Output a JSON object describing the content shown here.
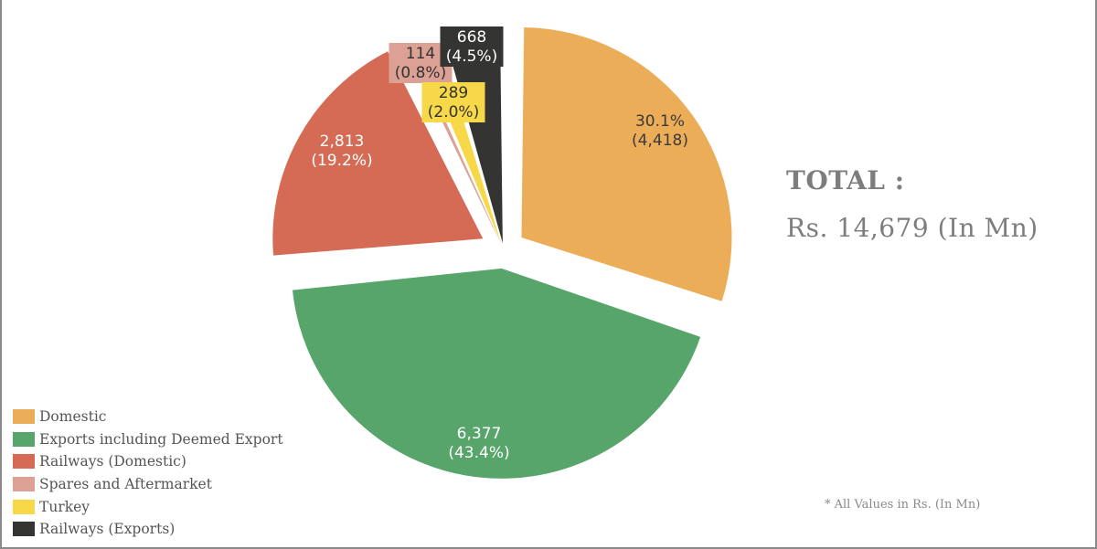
{
  "chart_data": {
    "type": "pie",
    "total_text": "TOTAL :",
    "total_amount": "Rs. 14,679 (In Mn)",
    "note": "* All Values in Rs. (In Mn)",
    "slices": [
      {
        "name": "Domestic",
        "value": 4418,
        "percent": 30.1,
        "color": "#EBAD58",
        "value_label": "(4,418)",
        "percent_label": "30.1%",
        "label_order": "percent_first",
        "label_color": "#3a3a3a",
        "label_bg": "",
        "exploded": true
      },
      {
        "name": "Exports including Deemed Export",
        "value": 6377,
        "percent": 43.4,
        "color": "#57A56A",
        "value_label": "6,377",
        "percent_label": "(43.4%)",
        "label_order": "value_first",
        "label_color": "#ffffff",
        "label_bg": "",
        "exploded": true
      },
      {
        "name": "Railways (Domestic)",
        "value": 2813,
        "percent": 19.2,
        "color": "#D56B55",
        "value_label": "2,813",
        "percent_label": "(19.2%)",
        "label_order": "value_first",
        "label_color": "#ffffff",
        "label_bg": "",
        "exploded": true
      },
      {
        "name": "Spares and Aftermarket",
        "value": 114,
        "percent": 0.8,
        "color": "#DDA094",
        "value_label": "114",
        "percent_label": "(0.8%)",
        "label_order": "value_first",
        "label_color": "#333333",
        "label_bg": "#DDA094",
        "exploded": false
      },
      {
        "name": "Turkey",
        "value": 289,
        "percent": 2.0,
        "color": "#F7D848",
        "value_label": "289",
        "percent_label": "(2.0%)",
        "label_order": "value_first",
        "label_color": "#333333",
        "label_bg": "#F7D848",
        "exploded": false
      },
      {
        "name": "Railways (Exports)",
        "value": 668,
        "percent": 4.5,
        "color": "#343433",
        "value_label": "668",
        "percent_label": "(4.5%)",
        "label_order": "value_first",
        "label_color": "#ffffff",
        "label_bg": "#343433",
        "exploded": false
      }
    ]
  }
}
